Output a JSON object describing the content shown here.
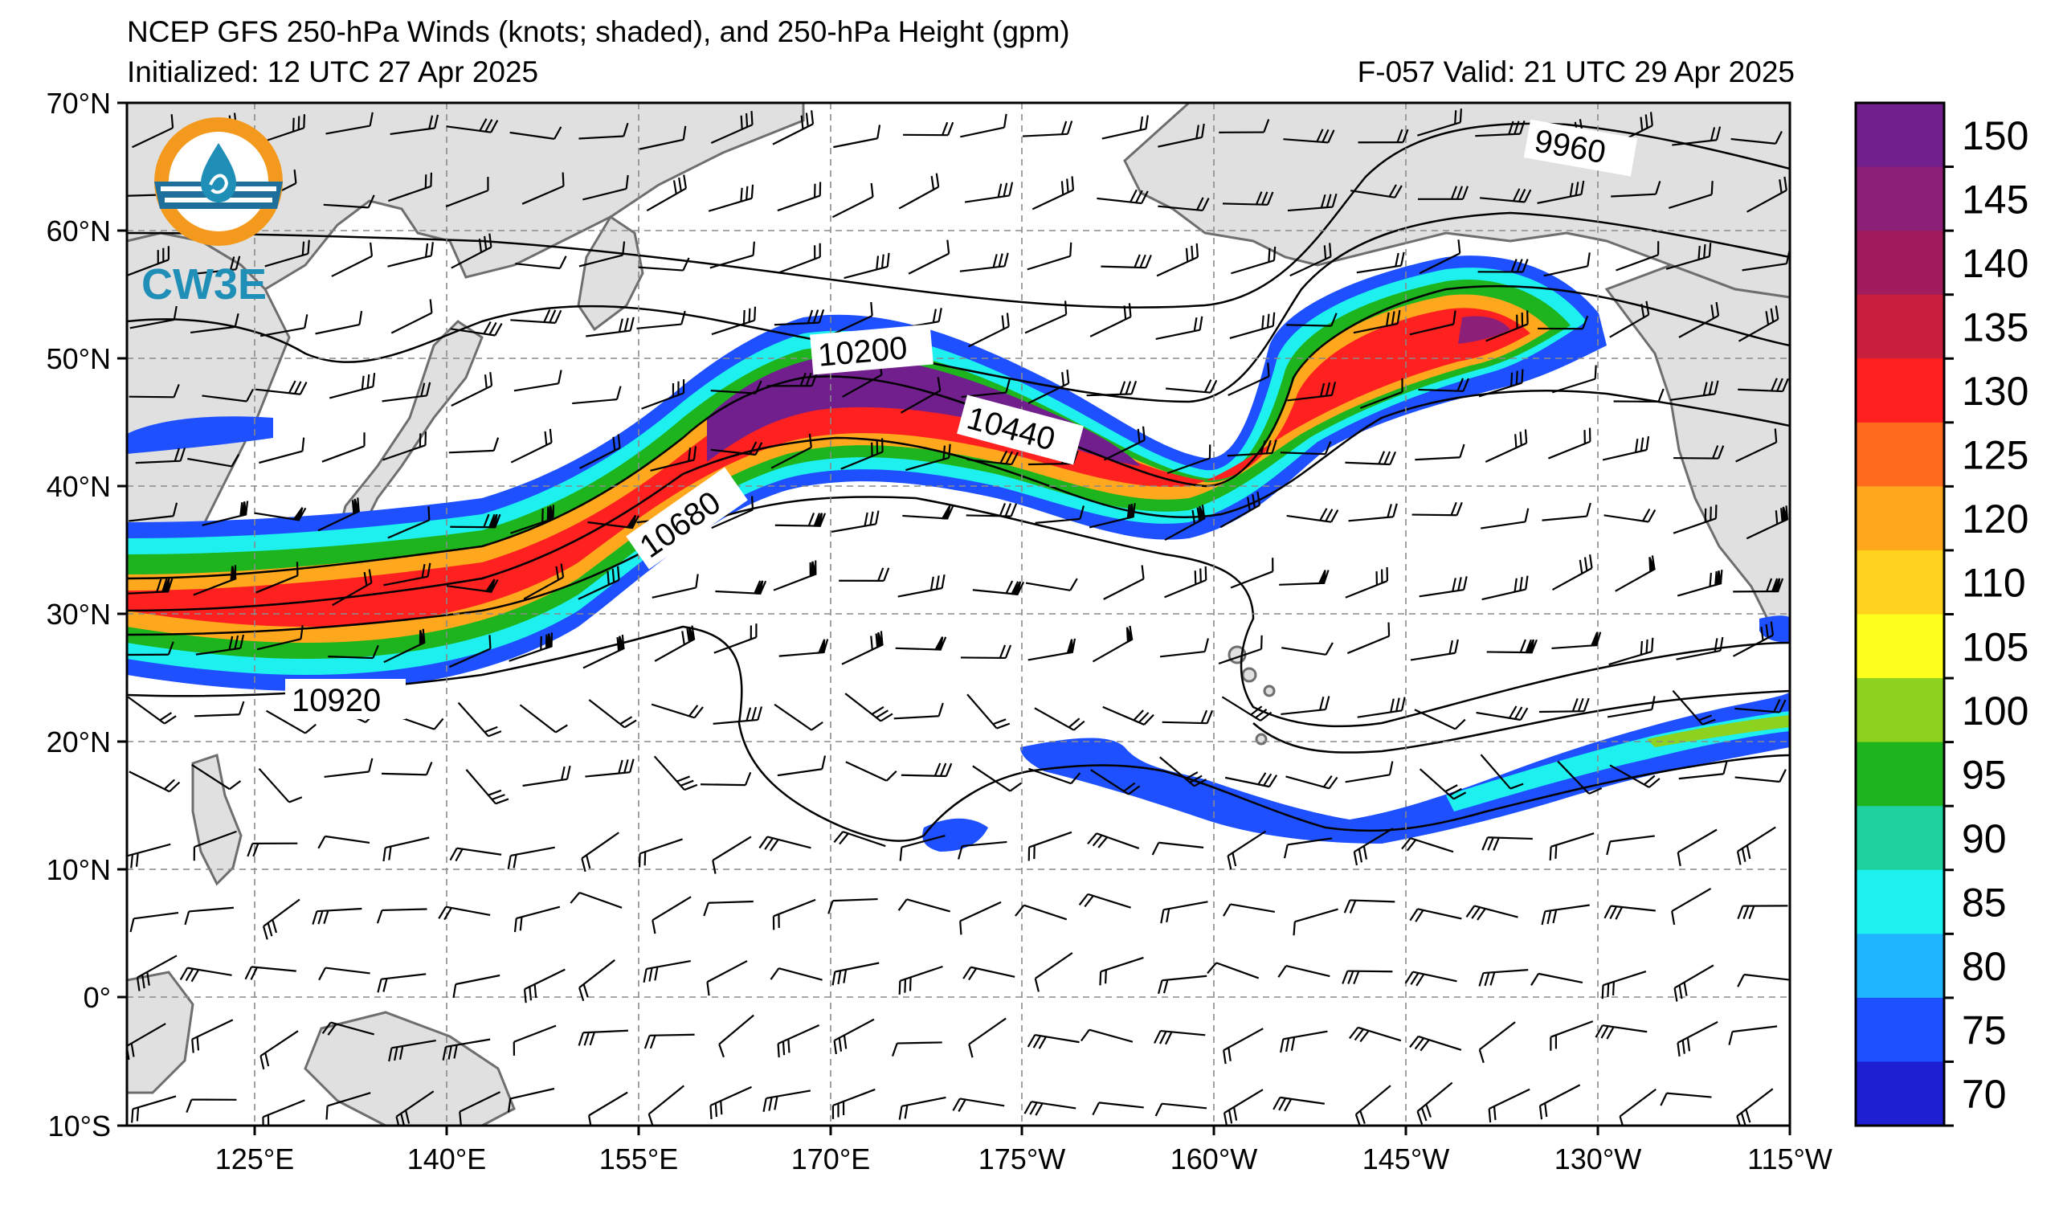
{
  "title": {
    "line1": "NCEP GFS 250-hPa Winds (knots; shaded), and 250-hPa Height (gpm)",
    "init": "Initialized: 12 UTC 27 Apr 2025",
    "valid": "F-057  Valid: 21 UTC 29 Apr 2025"
  },
  "logo": {
    "text": "CW3E",
    "icon": "cw3e-logo-icon"
  },
  "axes": {
    "lat_labels": [
      "70°N",
      "60°N",
      "50°N",
      "40°N",
      "30°N",
      "20°N",
      "10°N",
      "0°",
      "10°S"
    ],
    "lon_labels": [
      "125°E",
      "140°E",
      "155°E",
      "170°E",
      "175°W",
      "160°W",
      "145°W",
      "130°W",
      "115°W"
    ],
    "lat_range": [
      -10,
      70
    ],
    "lon_range_east": [
      115,
      245
    ]
  },
  "colorbar": {
    "labels": [
      "150",
      "145",
      "140",
      "135",
      "130",
      "125",
      "120",
      "110",
      "105",
      "100",
      "95",
      "90",
      "85",
      "80",
      "75",
      "70"
    ],
    "colors": [
      "#701f8c",
      "#8c1f78",
      "#a01c5c",
      "#c8203c",
      "#ff2020",
      "#ff6a1e",
      "#ffa81e",
      "#ffd21e",
      "#ffff1e",
      "#8cd21e",
      "#1eb41e",
      "#1ed2a0",
      "#1ef0f0",
      "#1eb4ff",
      "#1e50ff",
      "#1e1ed2"
    ]
  },
  "contours": {
    "labels": [
      "9960",
      "10200",
      "10440",
      "10680",
      "10920"
    ]
  },
  "colors": {
    "land": "#e0e0e0",
    "coast": "#6e6e6e",
    "grid": "#8a8a8a",
    "contour": "#000000"
  }
}
